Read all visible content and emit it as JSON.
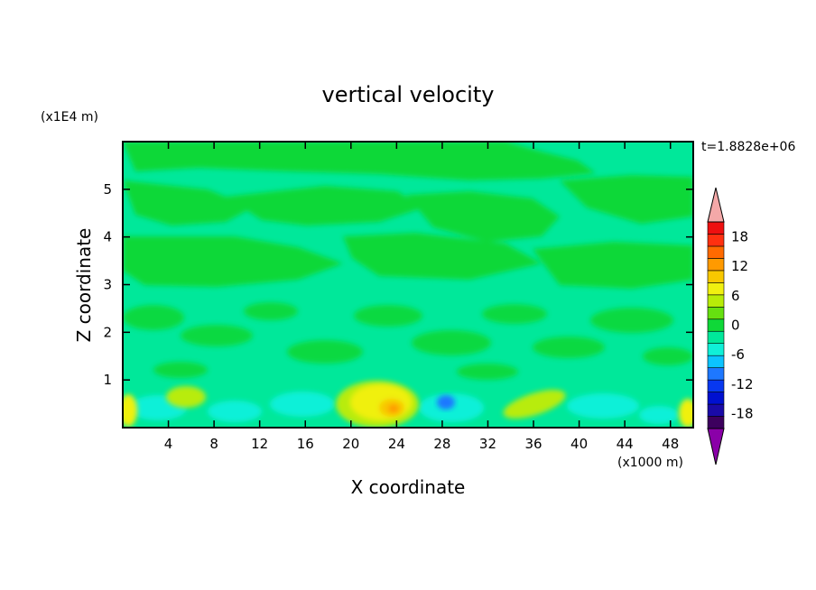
{
  "chart_data": {
    "type": "heatmap",
    "title": "vertical velocity",
    "xlabel": "X coordinate",
    "ylabel": "Z coordinate",
    "x_unit": "(x1000 m)",
    "y_unit": "(x1E4 m)",
    "time_label": "t=1.8828e+06",
    "xlim": [
      0,
      50
    ],
    "ylim": [
      0,
      6
    ],
    "x_ticks": [
      4,
      8,
      12,
      16,
      20,
      24,
      28,
      32,
      36,
      40,
      44,
      48
    ],
    "y_ticks": [
      1,
      2,
      3,
      4,
      5
    ],
    "colorbar": {
      "min": -21,
      "max": 21,
      "step": 3,
      "tick_labels": [
        18,
        12,
        6,
        0,
        -6,
        -12,
        -18
      ],
      "extend": "both",
      "colors": [
        "#3d005e",
        "#1a0aa8",
        "#0010d0",
        "#0838f0",
        "#1e78ff",
        "#0cc4ff",
        "#10f0d8",
        "#00e89a",
        "#0fd838",
        "#66e010",
        "#b8ec08",
        "#f0f010",
        "#f8c800",
        "#ff9a00",
        "#ff6a00",
        "#ff3010",
        "#ee1010"
      ],
      "overflow_high_color": "#f4a8a8",
      "overflow_low_color": "#8a00a8"
    },
    "features": [
      {
        "name": "background near zero",
        "value": 0
      },
      {
        "name": "updraft core",
        "x": 23.5,
        "z": 0.2,
        "value": 12
      },
      {
        "name": "downdraft",
        "x": 29,
        "z": 0.3,
        "value": -10
      },
      {
        "name": "upper-level weak downward band",
        "z_range": [
          3.2,
          5.8
        ],
        "value": -1
      }
    ]
  }
}
